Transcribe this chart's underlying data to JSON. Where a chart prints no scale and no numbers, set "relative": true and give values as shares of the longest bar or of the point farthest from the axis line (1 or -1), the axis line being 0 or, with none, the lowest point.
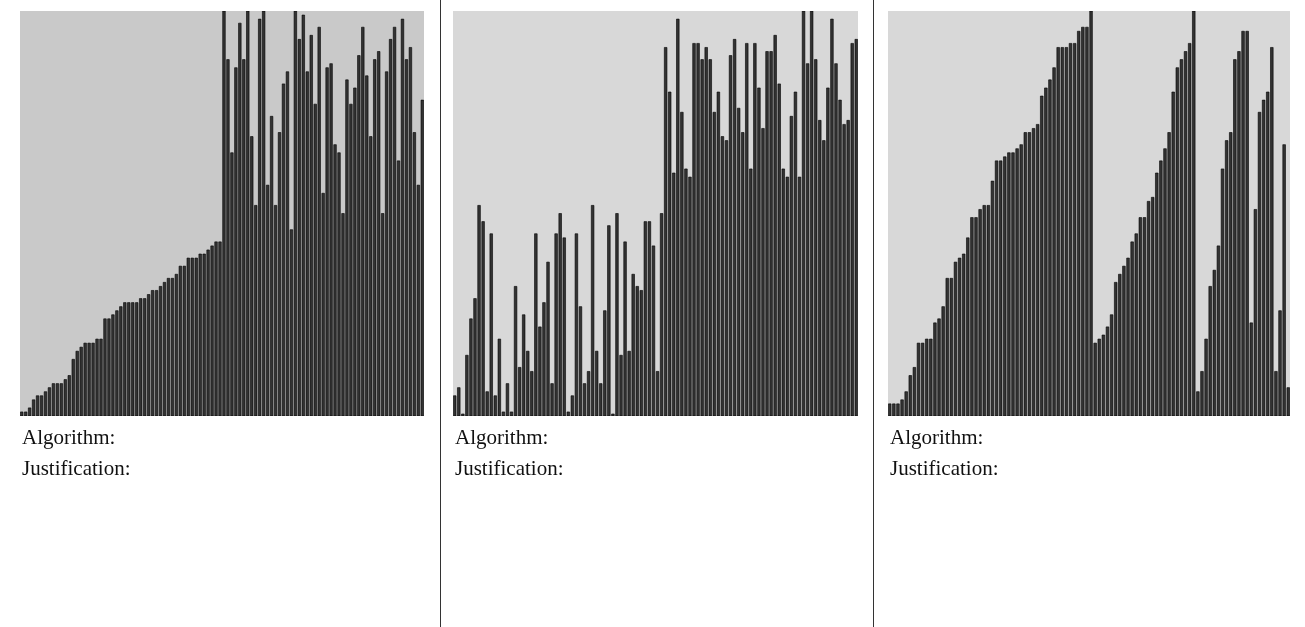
{
  "chart_data": [
    {
      "type": "bar",
      "relative": true,
      "color": "#333333",
      "annotations": [
        "Algorithm:",
        "Justification:"
      ],
      "categories": [
        null,
        null,
        null,
        null,
        null,
        null,
        null,
        null,
        null,
        null,
        null,
        null,
        null,
        null,
        null,
        null,
        null,
        null,
        null,
        null,
        null,
        null,
        null,
        null,
        null,
        null,
        null,
        null,
        null,
        null,
        null,
        null,
        null,
        null,
        null,
        null,
        null,
        null,
        null,
        null,
        null,
        null,
        null,
        null,
        null,
        null,
        null,
        null,
        null,
        null,
        null,
        null,
        null,
        null,
        null,
        null,
        null,
        null,
        null,
        null,
        null,
        null,
        null,
        null,
        null,
        null,
        null,
        null,
        null,
        null,
        null,
        null,
        null,
        null,
        null,
        null,
        null,
        null,
        null,
        null,
        null,
        null,
        null,
        null,
        null,
        null,
        null,
        null,
        null,
        null,
        null,
        null,
        null,
        null,
        null,
        null,
        null,
        null,
        null,
        null,
        null,
        null
      ],
      "values": [
        0.01,
        0.01,
        0.02,
        0.04,
        0.05,
        0.05,
        0.06,
        0.07,
        0.08,
        0.08,
        0.08,
        0.09,
        0.1,
        0.14,
        0.16,
        0.17,
        0.18,
        0.18,
        0.18,
        0.19,
        0.19,
        0.24,
        0.24,
        0.25,
        0.26,
        0.27,
        0.28,
        0.28,
        0.28,
        0.28,
        0.29,
        0.29,
        0.3,
        0.31,
        0.31,
        0.32,
        0.33,
        0.34,
        0.34,
        0.35,
        0.37,
        0.37,
        0.39,
        0.39,
        0.39,
        0.4,
        0.4,
        0.41,
        0.42,
        0.43,
        0.43,
        1.0,
        0.88,
        0.65,
        0.86,
        0.97,
        0.88,
        1.0,
        0.69,
        0.52,
        0.98,
        1.0,
        0.57,
        0.74,
        0.52,
        0.7,
        0.82,
        0.85,
        0.46,
        1.0,
        0.93,
        0.99,
        0.85,
        0.94,
        0.77,
        0.96,
        0.55,
        0.86,
        0.87,
        0.67,
        0.65,
        0.5,
        0.83,
        0.77,
        0.81,
        0.89,
        0.96,
        0.84,
        0.69,
        0.88,
        0.9,
        0.5,
        0.85,
        0.93,
        0.96,
        0.63,
        0.98,
        0.88,
        0.91,
        0.7,
        0.57,
        0.78
      ]
    },
    {
      "type": "bar",
      "relative": true,
      "color": "#333333",
      "annotations": [
        "Algorithm:",
        "Justification:"
      ],
      "categories": [
        null,
        null,
        null,
        null,
        null,
        null,
        null,
        null,
        null,
        null,
        null,
        null,
        null,
        null,
        null,
        null,
        null,
        null,
        null,
        null,
        null,
        null,
        null,
        null,
        null,
        null,
        null,
        null,
        null,
        null,
        null,
        null,
        null,
        null,
        null,
        null,
        null,
        null,
        null,
        null,
        null,
        null,
        null,
        null,
        null,
        null,
        null,
        null,
        null,
        null,
        null,
        null,
        null,
        null,
        null,
        null,
        null,
        null,
        null,
        null,
        null,
        null,
        null,
        null,
        null,
        null,
        null,
        null,
        null,
        null,
        null,
        null,
        null,
        null,
        null,
        null,
        null,
        null,
        null,
        null,
        null,
        null,
        null,
        null,
        null,
        null,
        null,
        null,
        null,
        null,
        null,
        null,
        null,
        null,
        null,
        null,
        null,
        null,
        null,
        null
      ],
      "values": [
        0.05,
        0.07,
        0.005,
        0.15,
        0.24,
        0.29,
        0.52,
        0.48,
        0.06,
        0.45,
        0.05,
        0.19,
        0.01,
        0.08,
        0.01,
        0.32,
        0.12,
        0.25,
        0.16,
        0.11,
        0.45,
        0.22,
        0.28,
        0.38,
        0.08,
        0.45,
        0.5,
        0.44,
        0.01,
        0.05,
        0.45,
        0.27,
        0.08,
        0.11,
        0.52,
        0.16,
        0.08,
        0.26,
        0.47,
        0.005,
        0.5,
        0.15,
        0.43,
        0.16,
        0.35,
        0.32,
        0.31,
        0.48,
        0.48,
        0.42,
        0.11,
        0.5,
        0.91,
        0.8,
        0.6,
        0.98,
        0.75,
        0.61,
        0.59,
        0.92,
        0.92,
        0.88,
        0.91,
        0.88,
        0.75,
        0.8,
        0.69,
        0.68,
        0.89,
        0.93,
        0.76,
        0.7,
        0.92,
        0.61,
        0.92,
        0.81,
        0.71,
        0.9,
        0.9,
        0.94,
        0.82,
        0.61,
        0.59,
        0.74,
        0.8,
        0.59,
        1.0,
        0.87,
        1.0,
        0.88,
        0.73,
        0.68,
        0.81,
        0.98,
        0.87,
        0.78,
        0.72,
        0.73,
        0.92,
        0.93
      ]
    },
    {
      "type": "bar",
      "relative": true,
      "color": "#333333",
      "annotations": [
        "Algorithm:",
        "Justification:"
      ],
      "categories": [
        null,
        null,
        null,
        null,
        null,
        null,
        null,
        null,
        null,
        null,
        null,
        null,
        null,
        null,
        null,
        null,
        null,
        null,
        null,
        null,
        null,
        null,
        null,
        null,
        null,
        null,
        null,
        null,
        null,
        null,
        null,
        null,
        null,
        null,
        null,
        null,
        null,
        null,
        null,
        null,
        null,
        null,
        null,
        null,
        null,
        null,
        null,
        null,
        null,
        null,
        null,
        null,
        null,
        null,
        null,
        null,
        null,
        null,
        null,
        null,
        null,
        null,
        null,
        null,
        null,
        null,
        null,
        null,
        null,
        null,
        null,
        null,
        null,
        null,
        null,
        null,
        null,
        null,
        null,
        null,
        null,
        null,
        null,
        null,
        null,
        null,
        null,
        null,
        null,
        null,
        null,
        null,
        null,
        null,
        null,
        null,
        null,
        null
      ],
      "values": [
        0.03,
        0.03,
        0.03,
        0.04,
        0.06,
        0.1,
        0.12,
        0.18,
        0.18,
        0.19,
        0.19,
        0.23,
        0.24,
        0.27,
        0.34,
        0.34,
        0.38,
        0.39,
        0.4,
        0.44,
        0.49,
        0.49,
        0.51,
        0.52,
        0.52,
        0.58,
        0.63,
        0.63,
        0.64,
        0.65,
        0.65,
        0.66,
        0.67,
        0.7,
        0.7,
        0.71,
        0.72,
        0.79,
        0.81,
        0.83,
        0.86,
        0.91,
        0.91,
        0.91,
        0.92,
        0.92,
        0.95,
        0.96,
        0.96,
        1.0,
        0.18,
        0.19,
        0.2,
        0.22,
        0.25,
        0.33,
        0.35,
        0.37,
        0.39,
        0.43,
        0.45,
        0.49,
        0.49,
        0.53,
        0.54,
        0.6,
        0.63,
        0.66,
        0.7,
        0.8,
        0.86,
        0.88,
        0.9,
        0.92,
        1.0,
        0.06,
        0.11,
        0.19,
        0.32,
        0.36,
        0.42,
        0.61,
        0.68,
        0.7,
        0.88,
        0.9,
        0.95,
        0.95,
        0.23,
        0.51,
        0.75,
        0.78,
        0.8,
        0.91,
        0.11,
        0.26,
        0.67,
        0.07
      ]
    }
  ]
}
